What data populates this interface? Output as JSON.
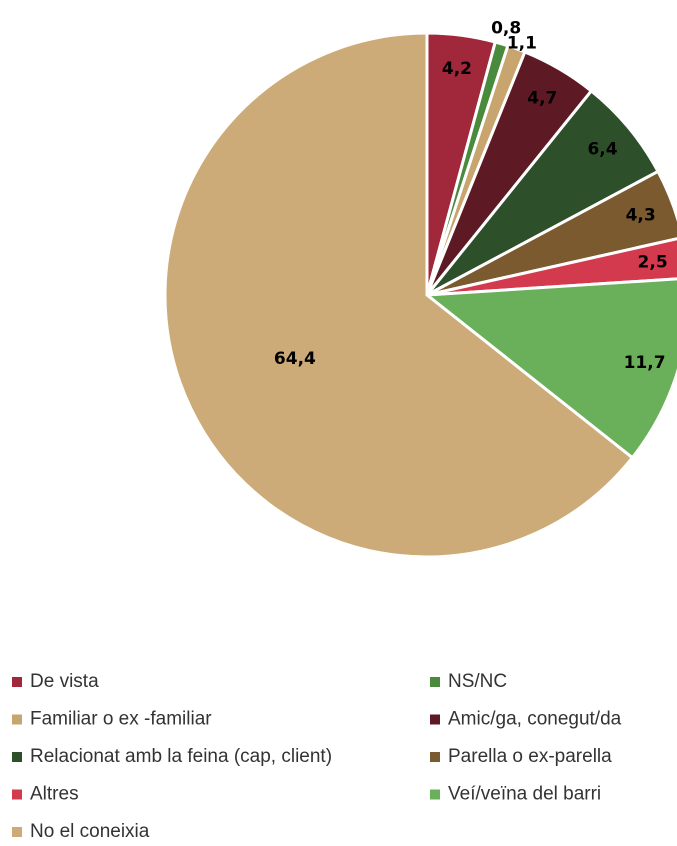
{
  "chart_data": {
    "type": "pie",
    "categories": [
      "De vista",
      "NS/NC",
      "Familiar o ex -familiar",
      "Amic/ga, conegut/da",
      "Relacionat amb la feina (cap, client)",
      "Parella o ex-parella",
      "Altres",
      "Veí/veïna del barri",
      "No el coneixia"
    ],
    "values": [
      4.2,
      0.8,
      1.1,
      4.7,
      6.4,
      4.3,
      2.5,
      11.7,
      64.4
    ],
    "value_labels": [
      "4,2",
      "0,8",
      "1,1",
      "4,7",
      "6,4",
      "4,3",
      "2,5",
      "11,7",
      "64,4"
    ],
    "colors": [
      "#a0283a",
      "#4a8a3c",
      "#c8a46f",
      "#5e1a24",
      "#2d4f2a",
      "#7a5a2e",
      "#d33a4e",
      "#6aaf59",
      "#cdab78"
    ],
    "legend": "bottom"
  }
}
